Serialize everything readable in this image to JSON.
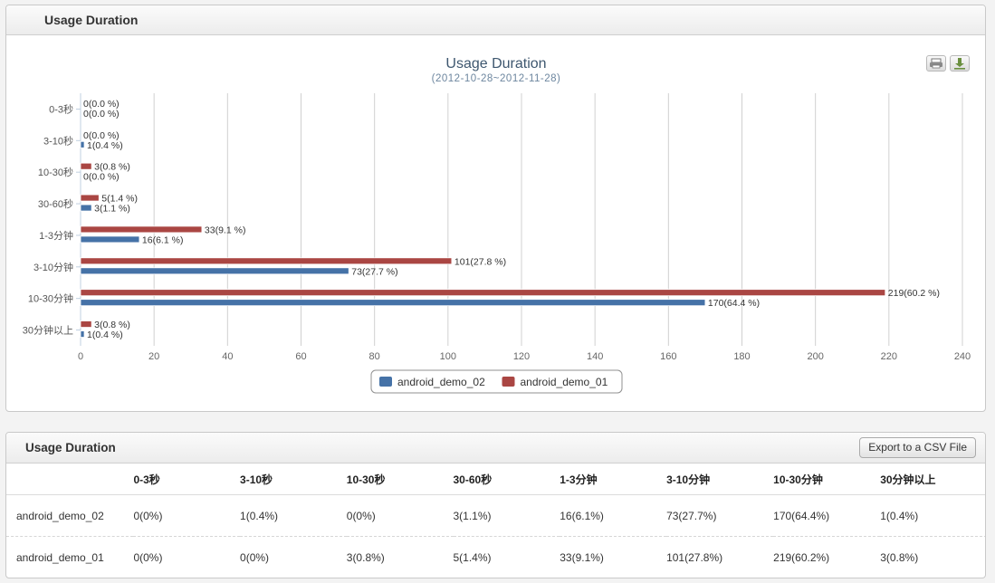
{
  "chart_panel": {
    "header_title": "Usage Duration",
    "print_icon": "print-icon",
    "download_icon": "download-icon"
  },
  "chart_data": {
    "type": "bar",
    "orientation": "horizontal",
    "title": "Usage Duration",
    "subtitle": "(2012-10-28~2012-11-28)",
    "categories": [
      "0-3秒",
      "3-10秒",
      "10-30秒",
      "30-60秒",
      "1-3分钟",
      "3-10分钟",
      "10-30分钟",
      "30分钟以上"
    ],
    "series": [
      {
        "name": "android_demo_01",
        "color": "#aa4643",
        "values": [
          0,
          0,
          3,
          5,
          33,
          101,
          219,
          3
        ],
        "labels": [
          "0(0.0 %)",
          "0(0.0 %)",
          "3(0.8 %)",
          "5(1.4 %)",
          "33(9.1 %)",
          "101(27.8 %)",
          "219(60.2 %)",
          "3(0.8 %)"
        ]
      },
      {
        "name": "android_demo_02",
        "color": "#4572a7",
        "values": [
          0,
          1,
          0,
          3,
          16,
          73,
          170,
          1
        ],
        "labels": [
          "0(0.0 %)",
          "1(0.4 %)",
          "0(0.0 %)",
          "3(1.1 %)",
          "16(6.1 %)",
          "73(27.7 %)",
          "170(64.4 %)",
          "1(0.4 %)"
        ]
      }
    ],
    "xlim": [
      0,
      240
    ],
    "ticks": [
      0,
      20,
      40,
      60,
      80,
      100,
      120,
      140,
      160,
      180,
      200,
      220,
      240
    ],
    "legend": [
      "android_demo_02",
      "android_demo_01"
    ],
    "legend_position": "bottom-center",
    "grid": true
  },
  "table_panel": {
    "header_title": "Usage Duration",
    "export_label": "Export to a CSV File",
    "columns": [
      "",
      "0-3秒",
      "3-10秒",
      "10-30秒",
      "30-60秒",
      "1-3分钟",
      "3-10分钟",
      "10-30分钟",
      "30分钟以上"
    ],
    "rows": [
      [
        "android_demo_02",
        "0(0%)",
        "1(0.4%)",
        "0(0%)",
        "3(1.1%)",
        "16(6.1%)",
        "73(27.7%)",
        "170(64.4%)",
        "1(0.4%)"
      ],
      [
        "android_demo_01",
        "0(0%)",
        "0(0%)",
        "3(0.8%)",
        "5(1.4%)",
        "33(9.1%)",
        "101(27.8%)",
        "219(60.2%)",
        "3(0.8%)"
      ]
    ]
  }
}
